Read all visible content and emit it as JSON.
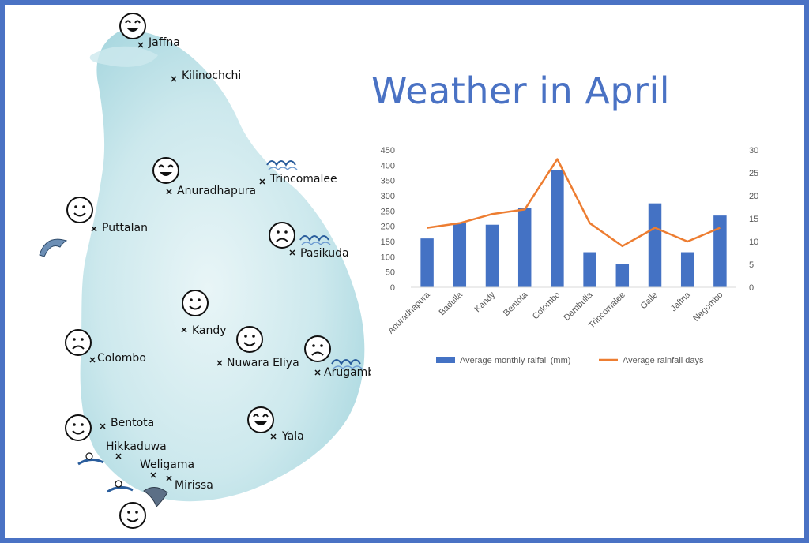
{
  "page": {
    "title": "Weather in April"
  },
  "colors": {
    "frame": "#4a72c4",
    "title": "#4a72c4",
    "bar": "#4472c4",
    "line": "#ed7d31",
    "map_fill": "#bfe3e8"
  },
  "map": {
    "places": [
      {
        "id": "jaffna",
        "label": "Jaffna",
        "face": "love"
      },
      {
        "id": "kilinochchi",
        "label": "Kilinochchi",
        "face": ""
      },
      {
        "id": "trincomalee",
        "label": "Trincomalee",
        "face": "",
        "wave": true
      },
      {
        "id": "anuradhapura",
        "label": "Anuradhapura",
        "face": "love"
      },
      {
        "id": "puttalan",
        "label": "Puttalan",
        "face": "smile",
        "dolphin": true
      },
      {
        "id": "pasikuda",
        "label": "Pasikuda",
        "face": "sad",
        "wave": true
      },
      {
        "id": "kandy",
        "label": "Kandy",
        "face": "smile"
      },
      {
        "id": "colombo",
        "label": "Colombo",
        "face": "sad"
      },
      {
        "id": "nuwara-eliya",
        "label": "Nuwara Eliya",
        "face": "smile"
      },
      {
        "id": "arugamb",
        "label": "Arugamb",
        "face": "sad",
        "wave": true
      },
      {
        "id": "bentota",
        "label": "Bentota",
        "face": "smile"
      },
      {
        "id": "hikkaduwa",
        "label": "Hikkaduwa",
        "face": "",
        "surfer": true
      },
      {
        "id": "weligama",
        "label": "Weligama",
        "face": "",
        "surfer": true
      },
      {
        "id": "mirissa",
        "label": "Mirissa",
        "face": "",
        "whale": true
      },
      {
        "id": "yala",
        "label": "Yala",
        "face": "love"
      },
      {
        "id": "south",
        "label": "",
        "face": "smile"
      }
    ]
  },
  "chart_data": {
    "type": "bar",
    "title": "",
    "categories": [
      "Anuradhapura",
      "Badulla",
      "Kandy",
      "Bentota",
      "Colombo",
      "Dambulla",
      "Trincomalee",
      "Galle",
      "Jaffna",
      "Negombo"
    ],
    "series": [
      {
        "name": "Average monthly raifall (mm)",
        "type": "bar",
        "axis": "left",
        "values": [
          160,
          210,
          205,
          260,
          385,
          115,
          75,
          275,
          115,
          235
        ]
      },
      {
        "name": "Average rainfall days",
        "type": "line",
        "axis": "right",
        "values": [
          13,
          14,
          16,
          17,
          28,
          14,
          9,
          13,
          10,
          13
        ]
      }
    ],
    "y_left": {
      "min": 0,
      "max": 450,
      "ticks": [
        0,
        50,
        100,
        150,
        200,
        250,
        300,
        350,
        400,
        450
      ]
    },
    "y_right": {
      "min": 0,
      "max": 30,
      "ticks": [
        0,
        5,
        10,
        15,
        20,
        25,
        30
      ]
    },
    "grid": false,
    "legend": "bottom"
  }
}
